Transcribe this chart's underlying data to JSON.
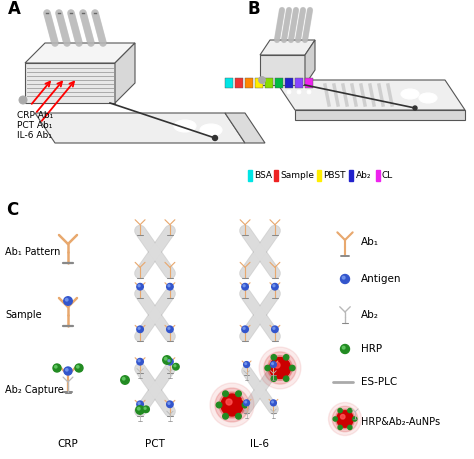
{
  "title_A": "A",
  "title_B": "B",
  "title_C": "C",
  "bg_color": "#ffffff",
  "label_crp": "CRP Ab₁",
  "label_pct": "PCT Ab₁",
  "label_il6": "IL-6 Ab₁",
  "legend_bsa_color": "#00e5e5",
  "legend_sample_color": "#ee2222",
  "legend_pbst_color": "#ffee00",
  "legend_ab2_color": "#2222cc",
  "legend_cl_color": "#ee22ee",
  "legend_labels": [
    "BSA",
    "Sample",
    "PBST",
    "Ab₂",
    "CL"
  ],
  "row_labels": [
    "Ab₁ Pattern",
    "Sample",
    "Ab₂ Capture"
  ],
  "col_labels": [
    "CRP",
    "PCT",
    "IL-6"
  ],
  "legend_items": [
    "Ab₁",
    "Antigen",
    "Ab₂",
    "HRP",
    "ES-PLC",
    "HRP&Ab₂-AuNPs"
  ],
  "ab1_color": "#E8A86E",
  "ab2_color": "#B8B8B8",
  "antigen_color": "#3355CC",
  "hrp_color": "#228B22",
  "red_nanoparticle_color": "#CC0000",
  "arrow_color": "#CC0000",
  "chip_face_color": "#EBEBEB",
  "chip_top_color": "#F5F5F5",
  "chip_edge_color": "#666666",
  "channel_bar_color": "#AAAAAA",
  "figsize": [
    4.74,
    4.59
  ],
  "dpi": 100
}
